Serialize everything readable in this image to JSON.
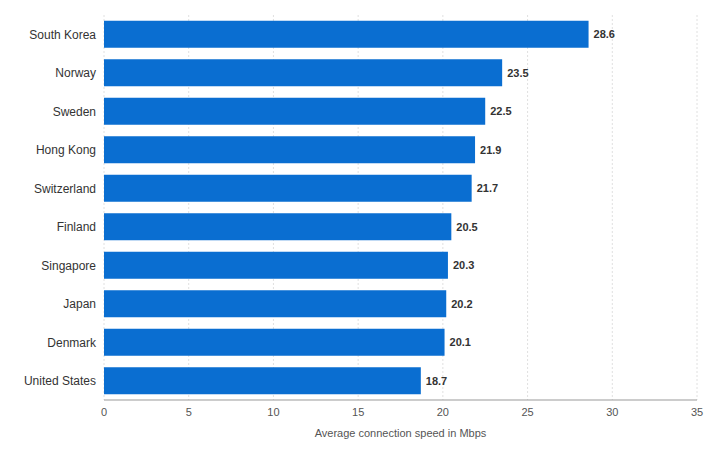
{
  "chart_data": {
    "type": "bar",
    "orientation": "horizontal",
    "x_label": "Average connection speed in Mbps",
    "categories": [
      "South Korea",
      "Norway",
      "Sweden",
      "Hong Kong",
      "Switzerland",
      "Finland",
      "Singapore",
      "Japan",
      "Denmark",
      "United States"
    ],
    "values": [
      28.6,
      23.5,
      22.5,
      21.9,
      21.7,
      20.5,
      20.3,
      20.2,
      20.1,
      18.7
    ],
    "color": "#0a6ed1",
    "xlim": [
      0,
      35
    ],
    "xticks": [
      0,
      5,
      10,
      15,
      20,
      25,
      30,
      35
    ],
    "grid": true,
    "data_labels": true
  }
}
